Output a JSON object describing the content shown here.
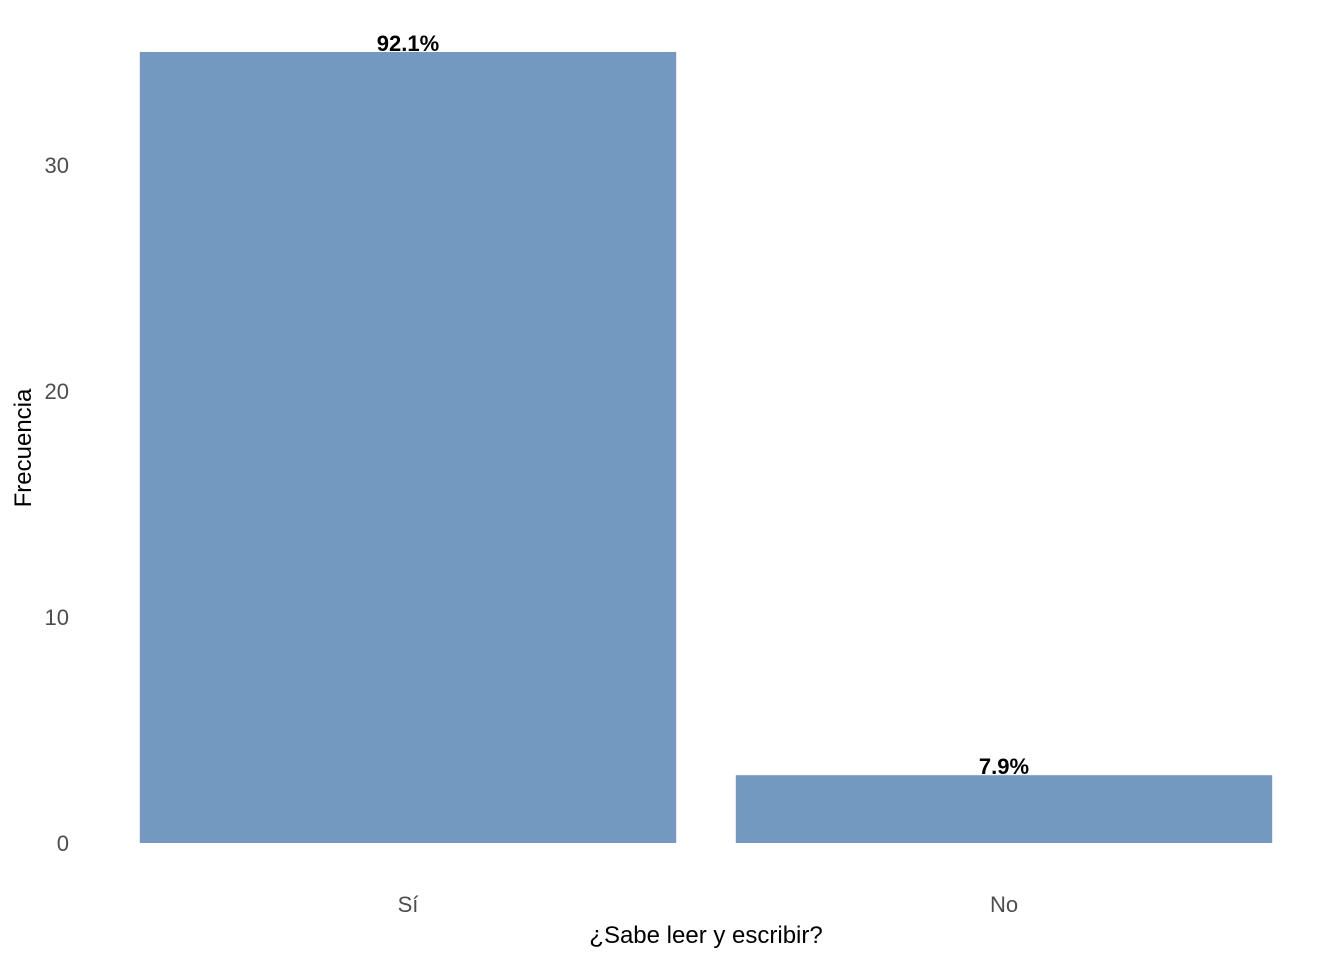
{
  "chart_data": {
    "type": "bar",
    "categories": [
      "Sí",
      "No"
    ],
    "values": [
      35,
      3
    ],
    "data_labels": [
      "92.1%",
      "7.9%"
    ],
    "title": "",
    "xlabel": "¿Sabe leer y escribir?",
    "ylabel": "Frecuencia",
    "ylim": [
      0,
      35
    ],
    "yticks": [
      0,
      10,
      20,
      30
    ],
    "grid": false,
    "legend": "none",
    "colors": {
      "bar": "#7399C1",
      "tick_text": "#4d4d4d",
      "label_text": "#000000",
      "background": "#ffffff"
    }
  }
}
